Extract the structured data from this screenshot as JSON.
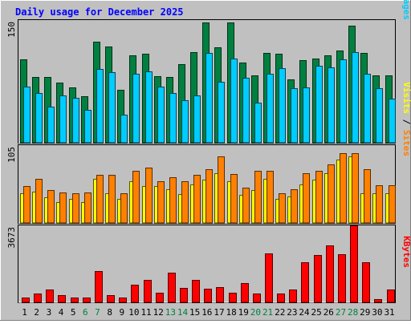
{
  "title": "Daily usage for December 2025",
  "days": [
    "1",
    "2",
    "3",
    "4",
    "5",
    "6",
    "7",
    "8",
    "9",
    "10",
    "11",
    "12",
    "13",
    "14",
    "15",
    "16",
    "17",
    "18",
    "19",
    "20",
    "21",
    "22",
    "23",
    "24",
    "25",
    "26",
    "27",
    "28",
    "29",
    "30",
    "31"
  ],
  "weekend_days": [
    "6",
    "7",
    "13",
    "14",
    "20",
    "21",
    "27",
    "28"
  ],
  "chart_data": [
    {
      "type": "bar",
      "panel": "traffic",
      "y_max_label": "150",
      "ylim": [
        0,
        150
      ],
      "legend": [
        {
          "name": "Pages",
          "color": "#00ccff"
        },
        {
          "name": "Files",
          "color": "#00aaff"
        },
        {
          "name": "Hits",
          "color": "#008040"
        }
      ],
      "separator": " / ",
      "categories": [
        "1",
        "2",
        "3",
        "4",
        "5",
        "6",
        "7",
        "8",
        "9",
        "10",
        "11",
        "12",
        "13",
        "14",
        "15",
        "16",
        "17",
        "18",
        "19",
        "20",
        "21",
        "22",
        "23",
        "24",
        "25",
        "26",
        "27",
        "28",
        "29",
        "30",
        "31"
      ],
      "series": [
        {
          "name": "Hits",
          "values": [
            102,
            80,
            80,
            74,
            68,
            57,
            124,
            118,
            65,
            107,
            109,
            81,
            80,
            96,
            111,
            147,
            117,
            147,
            98,
            82,
            110,
            109,
            77,
            101,
            103,
            107,
            113,
            143,
            110,
            82,
            82
          ]
        },
        {
          "name": "Pages",
          "values": [
            69,
            61,
            44,
            58,
            55,
            40,
            90,
            86,
            34,
            84,
            87,
            69,
            61,
            52,
            58,
            110,
            75,
            103,
            79,
            49,
            84,
            91,
            67,
            68,
            94,
            92,
            102,
            111,
            84,
            67,
            54
          ]
        }
      ]
    },
    {
      "type": "bar",
      "panel": "visits",
      "y_max_label": "105",
      "ylim": [
        0,
        105
      ],
      "legend": [
        {
          "name": "Sites",
          "color": "#ff8000"
        },
        {
          "name": "Visits",
          "color": "#ffff00"
        }
      ],
      "separator": " / ",
      "categories": [
        "1",
        "2",
        "3",
        "4",
        "5",
        "6",
        "7",
        "8",
        "9",
        "10",
        "11",
        "12",
        "13",
        "14",
        "15",
        "16",
        "17",
        "18",
        "19",
        "20",
        "21",
        "22",
        "23",
        "24",
        "25",
        "26",
        "27",
        "28",
        "29",
        "30",
        "31"
      ],
      "series": [
        {
          "name": "Visits",
          "values": [
            40,
            42,
            35,
            28,
            32,
            28,
            59,
            40,
            32,
            56,
            50,
            50,
            45,
            39,
            52,
            58,
            67,
            56,
            38,
            44,
            60,
            33,
            36,
            52,
            58,
            67,
            85,
            90,
            40,
            40,
            40
          ]
        },
        {
          "name": "Sites",
          "values": [
            50,
            60,
            44,
            41,
            40,
            41,
            65,
            65,
            40,
            70,
            75,
            56,
            62,
            56,
            65,
            73,
            90,
            66,
            48,
            70,
            70,
            40,
            46,
            67,
            70,
            79,
            94,
            94,
            72,
            51,
            51
          ]
        }
      ]
    },
    {
      "type": "bar",
      "panel": "kbytes",
      "y_max_label": "3673",
      "ylim": [
        0,
        3673
      ],
      "legend": [
        {
          "name": "KBytes",
          "color": "#ff0000"
        }
      ],
      "separator": "",
      "categories": [
        "1",
        "2",
        "3",
        "4",
        "5",
        "6",
        "7",
        "8",
        "9",
        "10",
        "11",
        "12",
        "13",
        "14",
        "15",
        "16",
        "17",
        "18",
        "19",
        "20",
        "21",
        "22",
        "23",
        "24",
        "25",
        "26",
        "27",
        "28",
        "29",
        "30",
        "31"
      ],
      "series": [
        {
          "name": "KBytes",
          "values": [
            243,
            436,
            595,
            361,
            245,
            245,
            1480,
            342,
            241,
            856,
            1061,
            445,
            1419,
            700,
            1064,
            649,
            715,
            457,
            935,
            436,
            2347,
            432,
            608,
            1912,
            2268,
            2706,
            2298,
            3673,
            1912,
            169,
            620
          ]
        }
      ]
    }
  ]
}
